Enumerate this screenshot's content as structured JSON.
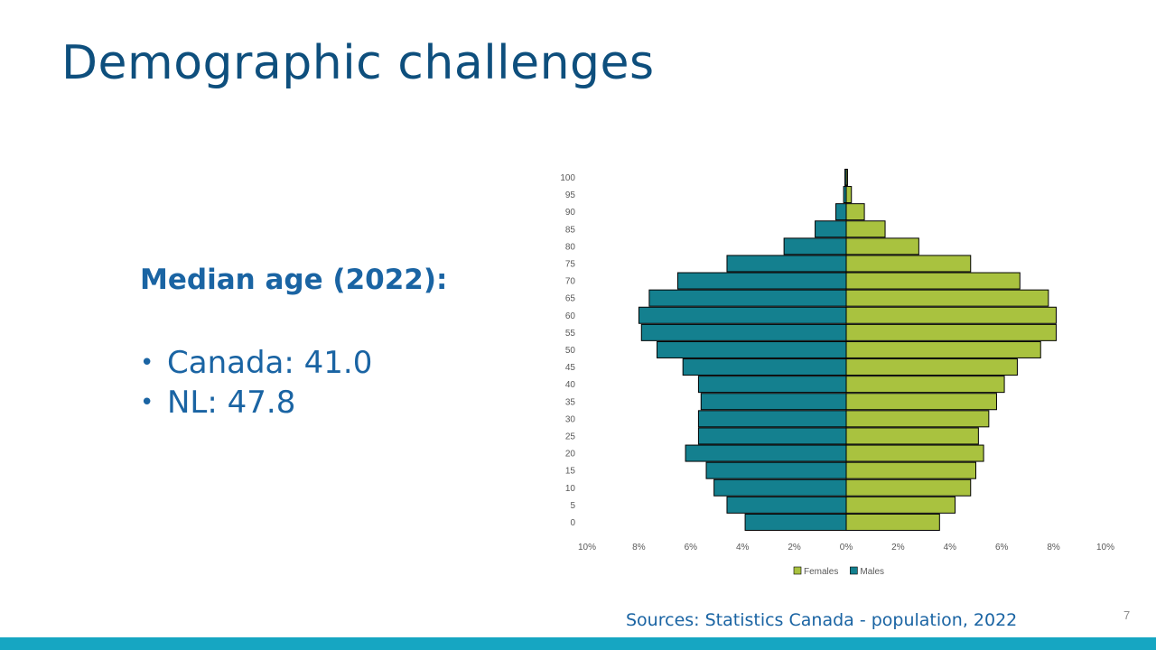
{
  "slide": {
    "title": "Demographic challenges",
    "median_heading": "Median age (2022):",
    "bullets": [
      {
        "bullet": "•",
        "text": "Canada: 41.0"
      },
      {
        "bullet": "•",
        "text": "NL: 47.8"
      }
    ],
    "sources": "Sources: Statistics Canada - population, 2022",
    "page_number": "7"
  },
  "chart_data": {
    "type": "bar",
    "orientation": "horizontal",
    "title": "",
    "xlabel": "",
    "ylabel": "",
    "categories": [
      "0",
      "5",
      "10",
      "15",
      "20",
      "25",
      "30",
      "35",
      "40",
      "45",
      "50",
      "55",
      "60",
      "65",
      "70",
      "75",
      "80",
      "85",
      "90",
      "95",
      "100"
    ],
    "series": [
      {
        "name": "Females",
        "color": "#a9c23f",
        "direction": "right",
        "values": [
          3.6,
          4.2,
          4.8,
          5.0,
          5.3,
          5.1,
          5.5,
          5.8,
          6.1,
          6.6,
          7.5,
          8.1,
          8.1,
          7.8,
          6.7,
          4.8,
          2.8,
          1.5,
          0.7,
          0.2,
          0.05
        ]
      },
      {
        "name": "Males",
        "color": "#14808f",
        "direction": "left",
        "values": [
          3.9,
          4.6,
          5.1,
          5.4,
          6.2,
          5.7,
          5.7,
          5.6,
          5.7,
          6.3,
          7.3,
          7.9,
          8.0,
          7.6,
          6.5,
          4.6,
          2.4,
          1.2,
          0.4,
          0.1,
          0.05
        ]
      }
    ],
    "x_ticks": [
      "10%",
      "8%",
      "6%",
      "4%",
      "2%",
      "0%",
      "2%",
      "4%",
      "6%",
      "8%",
      "10%"
    ],
    "xlim": [
      -10,
      10
    ],
    "legend_position": "bottom",
    "legend": [
      {
        "name": "Females",
        "color": "#a9c23f"
      },
      {
        "name": "Males",
        "color": "#14808f"
      }
    ]
  }
}
